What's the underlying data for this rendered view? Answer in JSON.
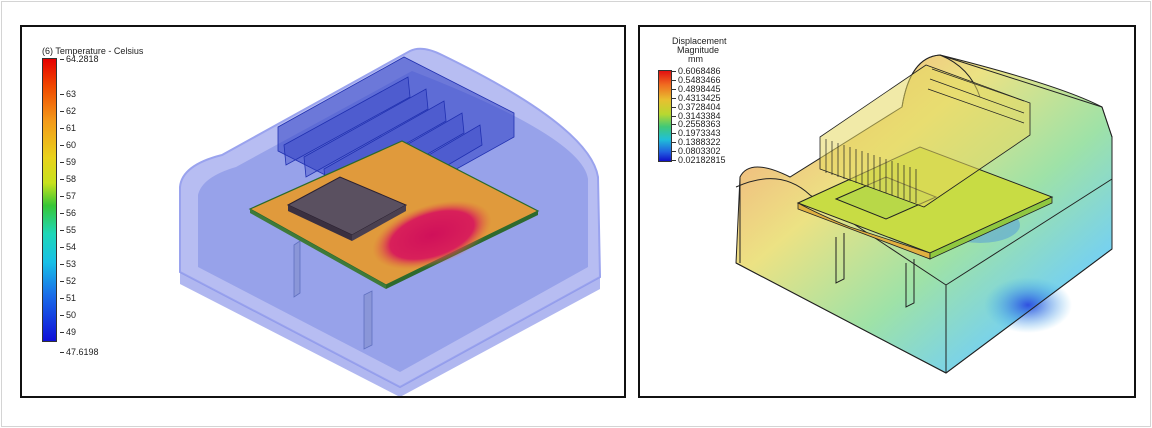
{
  "left_panel": {
    "legend_title": "(6) Temperature - Celsius",
    "ticks": [
      "64.2818",
      "63",
      "62",
      "61",
      "60",
      "59",
      "58",
      "57",
      "56",
      "55",
      "54",
      "53",
      "52",
      "51",
      "50",
      "49",
      "47.6198"
    ],
    "colors": {
      "housing": "#6f7fe6",
      "board": "#e0a03a",
      "hot_spot": "#d4145a",
      "heatsink": "#3846c8"
    }
  },
  "right_panel": {
    "legend_title_line1": "Displacement",
    "legend_title_line2": "Magnitude",
    "legend_title_line3": "mm",
    "ticks": [
      "0.6068486",
      "0.5483466",
      "0.4898445",
      "0.4313425",
      "0.3728404",
      "0.3143384",
      "0.2558363",
      "0.1973343",
      "0.1388322",
      "0.0803302",
      "0.02182815"
    ]
  }
}
